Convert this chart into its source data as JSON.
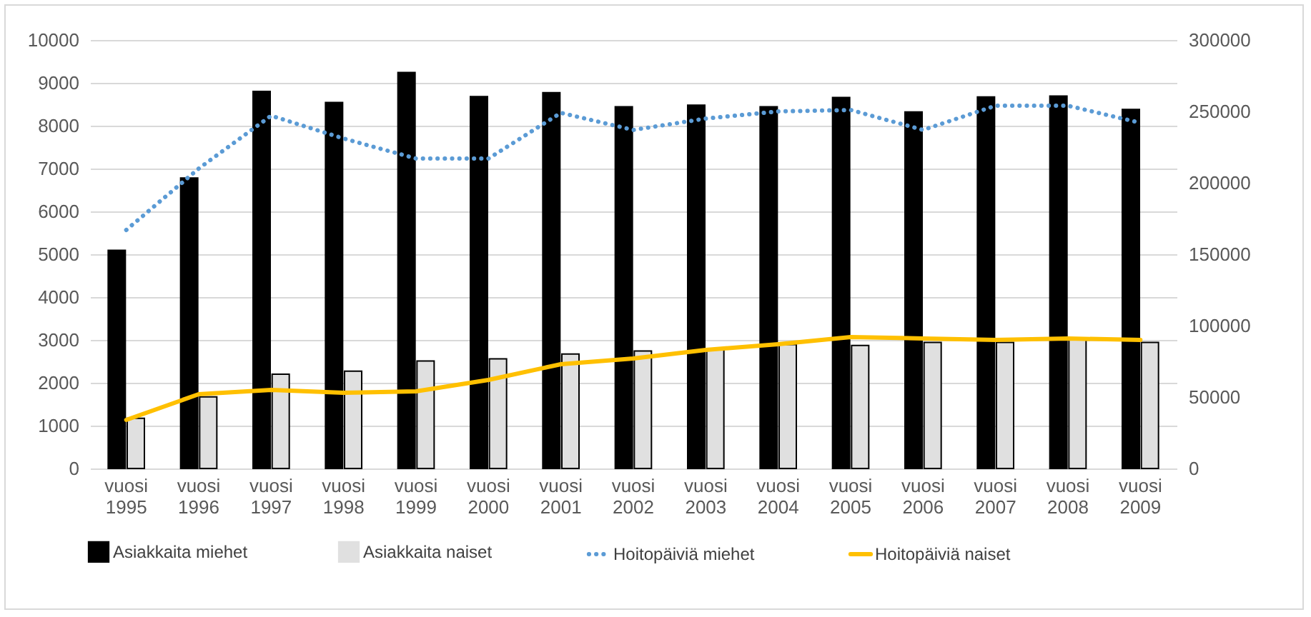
{
  "chart_data": {
    "type": "bar",
    "categories": [
      "vuosi 1995",
      "vuosi 1996",
      "vuosi 1997",
      "vuosi 1998",
      "vuosi 1999",
      "vuosi 2000",
      "vuosi 2001",
      "vuosi 2002",
      "vuosi 2003",
      "vuosi 2004",
      "vuosi 2005",
      "vuosi 2006",
      "vuosi 2007",
      "vuosi 2008",
      "vuosi 2009"
    ],
    "series": [
      {
        "name": "Asiakkaita miehet",
        "color": "#000000",
        "values": [
          5090,
          6780,
          8800,
          8540,
          9240,
          8680,
          8770,
          8440,
          8480,
          8440,
          8660,
          8320,
          8670,
          8690,
          8380
        ]
      },
      {
        "name": "Asiakkaita naiset",
        "color": "#e0e0e0",
        "values": [
          1170,
          1670,
          2200,
          2270,
          2510,
          2560,
          2670,
          2740,
          2780,
          2890,
          2870,
          2940,
          2940,
          3000,
          2940
        ]
      },
      {
        "name": "Hoitopäiviä miehet",
        "type": "line",
        "axis": "y2",
        "line_style": "dotted",
        "color": "#5b9bd5",
        "values": [
          167000,
          210000,
          247000,
          231000,
          217000,
          217000,
          249000,
          237000,
          245000,
          250000,
          251000,
          237000,
          254000,
          254000,
          242000
        ]
      },
      {
        "name": "Hoitopäiviä naiset",
        "type": "line",
        "axis": "y2",
        "line_style": "solid",
        "color": "#ffc000",
        "values": [
          34000,
          52000,
          55000,
          53000,
          54000,
          62000,
          73000,
          77000,
          83000,
          87000,
          92000,
          91000,
          90000,
          91000,
          90000
        ]
      }
    ],
    "ylim": [
      0,
      10000
    ],
    "yticks": [
      0,
      1000,
      2000,
      3000,
      4000,
      5000,
      6000,
      7000,
      8000,
      9000,
      10000
    ],
    "y2lim": [
      0,
      300000
    ],
    "y2ticks": [
      0,
      50000,
      100000,
      150000,
      200000,
      250000,
      300000
    ],
    "grid": "y",
    "legend": "bottom"
  }
}
